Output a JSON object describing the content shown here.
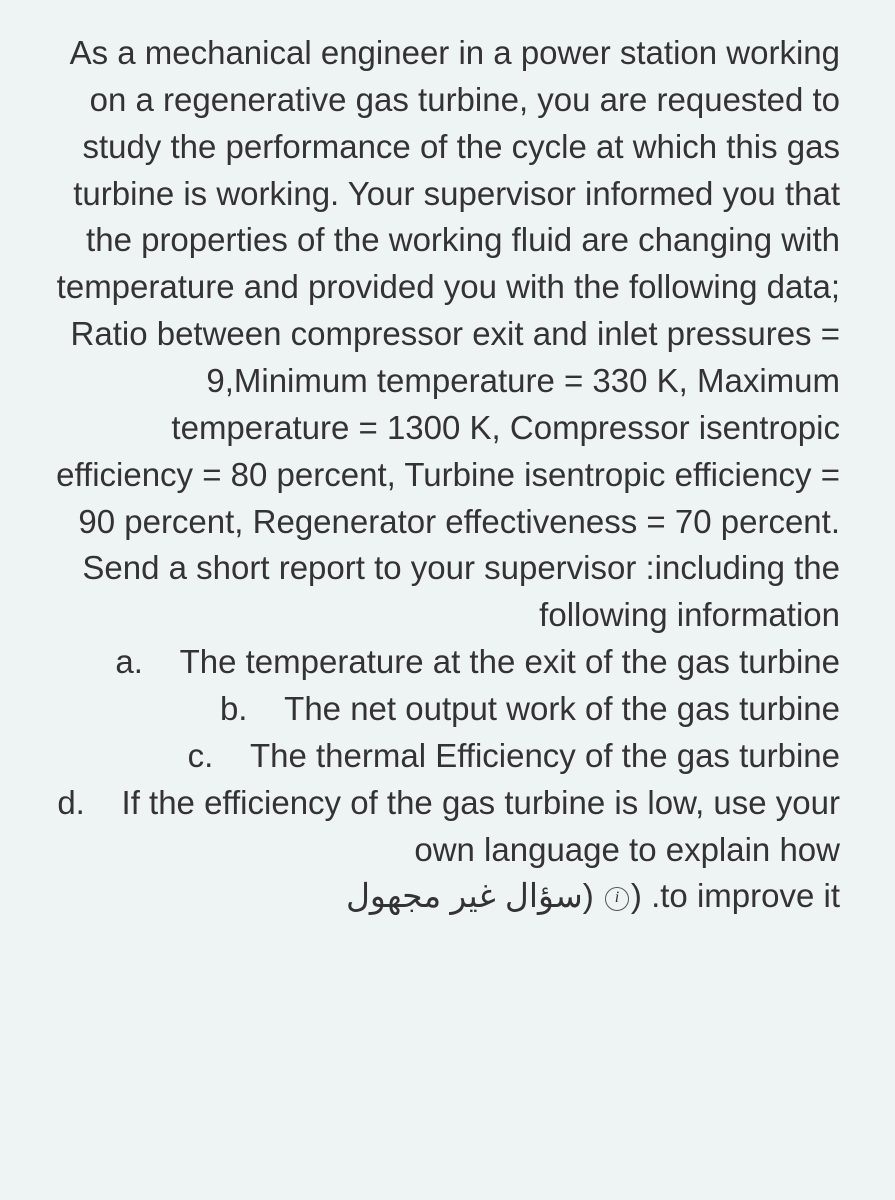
{
  "text": {
    "main_paragraph": "As a mechanical engineer in a power station working on a regenerative gas turbine, you are requested to study the performance of the cycle at which this gas turbine is working. Your supervisor informed you that the properties of the working fluid are changing with temperature and provided you with the following data; Ratio between compressor exit and inlet pressures = 9,Minimum temperature = 330 K, Maximum temperature = 1300 K, Compressor isentropic efficiency = 80 percent, Turbine isentropic efficiency = 90 percent, Regenerator effectiveness = 70 percent. Send a short report to your supervisor :including the following information",
    "item_a_label": "a.",
    "item_a": "The temperature at the exit of the gas turbine",
    "item_b_label": "b.",
    "item_b": "The net output work of the gas turbine",
    "item_c_label": "c.",
    "item_c": "The thermal Efficiency of the gas turbine",
    "item_d_label": "d.",
    "item_d_part1": "If the efficiency of the gas turbine is low, use your own language to explain how",
    "arabic_text": "(سؤال غير مجهول",
    "item_d_part2": ".to improve it",
    "closing_paren": ")"
  },
  "styling": {
    "background_color": "#eef3f3",
    "text_color": "#333333",
    "font_size": 33,
    "line_height": 1.42,
    "body_width": 895,
    "body_height": 1200,
    "font_family": "Arial, Helvetica, sans-serif",
    "text_align": "right"
  }
}
